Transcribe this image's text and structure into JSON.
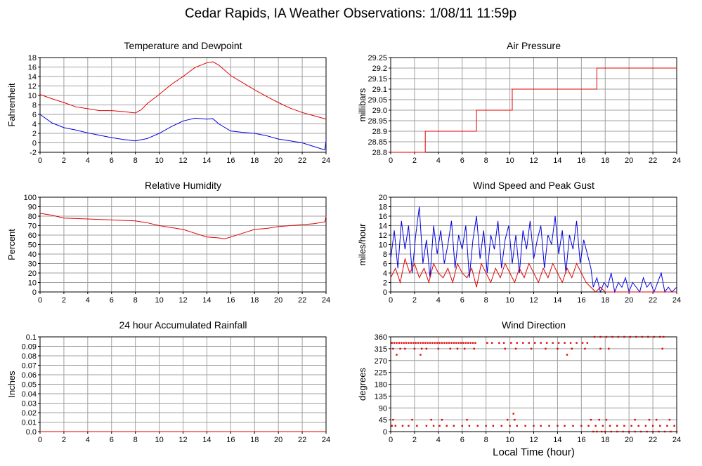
{
  "page": {
    "title": "Cedar Rapids, IA Weather Observations: 1/08/11 11:59p",
    "footer_xlabel": "Local Time (hour)"
  },
  "colors": {
    "red": "#e00000",
    "blue": "#0000e0",
    "grid": "#a0a0a0",
    "frame": "#000000"
  },
  "chart_data": [
    {
      "type": "line",
      "title": "Temperature and Dewpoint",
      "ylabel": "Fahrenheit",
      "xlim": [
        0,
        24
      ],
      "ylim": [
        -2,
        18
      ],
      "xticks": [
        "0",
        "2",
        "4",
        "6",
        "8",
        "10",
        "12",
        "14",
        "16",
        "18",
        "20",
        "22",
        "24"
      ],
      "yticks": [
        "-2",
        "0",
        "2",
        "4",
        "6",
        "8",
        "10",
        "12",
        "14",
        "16",
        "18"
      ],
      "grid": true,
      "series": [
        {
          "color": "red",
          "x": [
            0,
            1,
            2,
            3,
            3.5,
            4,
            5,
            6,
            7,
            8,
            8.5,
            9,
            10,
            11,
            12,
            13,
            14,
            14.5,
            15,
            16,
            17,
            18,
            19,
            20,
            21,
            22,
            23,
            24
          ],
          "y": [
            10.2,
            9.3,
            8.5,
            7.6,
            7.4,
            7.2,
            6.8,
            6.8,
            6.6,
            6.3,
            7.0,
            8.3,
            10.2,
            12.3,
            14.0,
            15.9,
            16.9,
            17.1,
            16.4,
            14.2,
            12.7,
            11.2,
            9.8,
            8.5,
            7.3,
            6.4,
            5.7,
            5.0
          ]
        },
        {
          "color": "blue",
          "x": [
            0,
            1,
            2,
            3,
            4,
            5,
            6,
            7,
            8,
            9,
            10,
            11,
            12,
            13,
            14,
            14.5,
            15,
            16,
            17,
            18,
            19,
            20,
            21,
            22,
            23,
            23.9,
            24
          ],
          "y": [
            6.0,
            4.2,
            3.2,
            2.7,
            2.1,
            1.6,
            1.1,
            0.7,
            0.4,
            0.9,
            2.0,
            3.4,
            4.6,
            5.2,
            5.0,
            5.1,
            4.0,
            2.5,
            2.2,
            2.0,
            1.5,
            0.8,
            0.4,
            0.0,
            -0.8,
            -1.5,
            0.5
          ]
        }
      ]
    },
    {
      "type": "line",
      "title": "Air Pressure",
      "ylabel": "millibars",
      "xlim": [
        0,
        24
      ],
      "ylim": [
        28.8,
        29.25
      ],
      "xticks": [
        "0",
        "2",
        "4",
        "6",
        "8",
        "10",
        "12",
        "14",
        "16",
        "18",
        "20",
        "22",
        "24"
      ],
      "yticks": [
        "28.8",
        "28.85",
        "28.9",
        "28.95",
        "29.0",
        "29.05",
        "29.1",
        "29.15",
        "29.2",
        "29.25"
      ],
      "grid": true,
      "series": [
        {
          "color": "red",
          "step": true,
          "x": [
            0,
            2.9,
            7.2,
            10.2,
            17.3,
            24
          ],
          "y": [
            28.8,
            28.9,
            29.0,
            29.1,
            29.2,
            29.2
          ]
        }
      ]
    },
    {
      "type": "line",
      "title": "Relative Humidity",
      "ylabel": "Percent",
      "xlim": [
        0,
        24
      ],
      "ylim": [
        0,
        100
      ],
      "xticks": [
        "0",
        "2",
        "4",
        "6",
        "8",
        "10",
        "12",
        "14",
        "16",
        "18",
        "20",
        "22",
        "24"
      ],
      "yticks": [
        "0",
        "10",
        "20",
        "30",
        "40",
        "50",
        "60",
        "70",
        "80",
        "90",
        "100"
      ],
      "grid": true,
      "series": [
        {
          "color": "red",
          "x": [
            0,
            1,
            2,
            4,
            6,
            8,
            9,
            10,
            11,
            12,
            13,
            14,
            15,
            15.5,
            16,
            17,
            18,
            19,
            20,
            21,
            22,
            23,
            23.9,
            24
          ],
          "y": [
            83,
            81,
            78,
            77,
            76,
            75,
            73,
            70,
            68,
            66,
            62,
            58,
            57,
            56,
            58,
            62,
            66,
            67,
            69,
            70,
            71,
            72,
            74,
            80
          ]
        }
      ]
    },
    {
      "type": "line",
      "title": "Wind Speed and Peak Gust",
      "ylabel": "miles/hour",
      "xlim": [
        0,
        24
      ],
      "ylim": [
        0,
        20
      ],
      "xticks": [
        "0",
        "2",
        "4",
        "6",
        "8",
        "10",
        "12",
        "14",
        "16",
        "18",
        "20",
        "22",
        "24"
      ],
      "yticks": [
        "0",
        "2",
        "4",
        "6",
        "8",
        "10",
        "12",
        "14",
        "16",
        "18",
        "20"
      ],
      "grid": true,
      "series": [
        {
          "color": "blue",
          "x": [
            0,
            0.3,
            0.6,
            0.9,
            1.2,
            1.5,
            1.8,
            2.1,
            2.4,
            2.7,
            3.0,
            3.3,
            3.6,
            3.9,
            4.2,
            4.5,
            4.8,
            5.1,
            5.4,
            5.7,
            6.0,
            6.3,
            6.6,
            6.9,
            7.2,
            7.5,
            7.8,
            8.1,
            8.4,
            8.7,
            9.0,
            9.3,
            9.6,
            9.9,
            10.2,
            10.5,
            10.8,
            11.1,
            11.4,
            11.7,
            12.0,
            12.3,
            12.6,
            12.9,
            13.2,
            13.5,
            13.8,
            14.1,
            14.4,
            14.7,
            15.0,
            15.3,
            15.6,
            15.9,
            16.2,
            16.5,
            16.8,
            17.0,
            17.3,
            17.6,
            17.9,
            18.2,
            18.5,
            18.8,
            19.1,
            19.4,
            19.7,
            20.0,
            20.3,
            20.6,
            20.9,
            21.2,
            21.5,
            21.8,
            22.1,
            22.4,
            22.7,
            23.0,
            23.3,
            23.6,
            24
          ],
          "y": [
            7,
            13,
            5,
            15,
            9,
            14,
            4,
            12,
            18,
            6,
            11,
            3,
            14,
            8,
            13,
            6,
            10,
            15,
            5,
            12,
            9,
            14,
            3,
            11,
            16,
            7,
            13,
            4,
            12,
            9,
            15,
            5,
            11,
            14,
            6,
            12,
            4,
            13,
            9,
            15,
            7,
            11,
            14,
            5,
            12,
            10,
            16,
            8,
            13,
            4,
            12,
            9,
            15,
            6,
            11,
            8,
            5,
            1,
            3,
            0,
            2,
            1,
            4,
            0,
            2,
            1,
            3,
            0,
            2,
            1,
            0,
            3,
            1,
            2,
            0,
            2,
            4,
            0,
            1,
            0,
            1
          ]
        },
        {
          "color": "red",
          "x": [
            0,
            0.4,
            0.8,
            1.2,
            1.6,
            2.0,
            2.4,
            2.8,
            3.2,
            3.6,
            4.0,
            4.4,
            4.8,
            5.2,
            5.6,
            6.0,
            6.4,
            6.8,
            7.2,
            7.6,
            8.0,
            8.4,
            8.8,
            9.2,
            9.6,
            10.0,
            10.4,
            10.8,
            11.2,
            11.6,
            12.0,
            12.4,
            12.8,
            13.2,
            13.6,
            14.0,
            14.4,
            14.8,
            15.2,
            15.6,
            16.0,
            16.4,
            16.8,
            17.2,
            17.6,
            18.0,
            19,
            20,
            21,
            22,
            23,
            24
          ],
          "y": [
            3,
            5,
            2,
            7,
            4,
            6,
            3,
            5,
            2,
            6,
            4,
            3,
            5,
            2,
            6,
            4,
            3,
            5,
            1,
            6,
            4,
            2,
            5,
            3,
            6,
            4,
            2,
            5,
            3,
            6,
            4,
            2,
            5,
            3,
            6,
            4,
            2,
            5,
            3,
            6,
            4,
            2,
            1,
            0,
            1,
            0,
            0,
            0,
            0,
            0,
            0,
            0
          ]
        }
      ]
    },
    {
      "type": "line",
      "title": "24 hour Accumulated Rainfall",
      "ylabel": "Inches",
      "xlim": [
        0,
        24
      ],
      "ylim": [
        0,
        0.1
      ],
      "xticks": [
        "0",
        "2",
        "4",
        "6",
        "8",
        "10",
        "12",
        "14",
        "16",
        "18",
        "20",
        "22",
        "24"
      ],
      "yticks": [
        "0.0",
        "0.01",
        "0.02",
        "0.03",
        "0.04",
        "0.05",
        "0.06",
        "0.07",
        "0.08",
        "0.09",
        "0.1"
      ],
      "grid": true,
      "series": [
        {
          "color": "red",
          "x": [
            0,
            24
          ],
          "y": [
            0,
            0
          ]
        }
      ]
    },
    {
      "type": "scatter",
      "title": "Wind Direction",
      "ylabel": "degrees",
      "xlabel": "Local Time (hour)",
      "xlim": [
        0,
        24
      ],
      "ylim": [
        0,
        360
      ],
      "xticks": [
        "0",
        "2",
        "4",
        "6",
        "8",
        "10",
        "12",
        "14",
        "16",
        "18",
        "20",
        "22",
        "24"
      ],
      "yticks": [
        "0",
        "45",
        "90",
        "135",
        "180",
        "225",
        "270",
        "315",
        "360"
      ],
      "grid": true,
      "series": [
        {
          "color": "red",
          "x": [
            0.1,
            0.3,
            0.5,
            0.7,
            0.9,
            1.1,
            1.3,
            1.5,
            1.7,
            1.9,
            2.1,
            2.3,
            2.5,
            2.7,
            2.9,
            3.1,
            3.3,
            3.5,
            3.7,
            3.9,
            4.1,
            4.3,
            4.5,
            4.7,
            4.9,
            5.1,
            5.3,
            5.5,
            5.7,
            5.9,
            6.1,
            6.3,
            6.5,
            6.7,
            6.9,
            7.1,
            8.1,
            8.5,
            9.1,
            9.5,
            10.1,
            10.6,
            11.1,
            11.6,
            12.1,
            12.6,
            13.1,
            13.6,
            14.1,
            14.6,
            15.1,
            15.6,
            16.1,
            16.5,
            17.1,
            17.6,
            18.1,
            18.6,
            19.1,
            19.6,
            20.1,
            20.6,
            21.1,
            21.6,
            22.1,
            22.6,
            22.9,
            0.2,
            0.8,
            1.2,
            2.0,
            2.6,
            3.0,
            4.0,
            5.0,
            5.6,
            6.2,
            7.0,
            9.6,
            10.5,
            11.8,
            13.0,
            14.0,
            15.2,
            16.3,
            17.6,
            18.3,
            22.8,
            0.5,
            2.5,
            14.8,
            10.3,
            0.1,
            0.4,
            1.0,
            1.5,
            2.2,
            3.0,
            3.6,
            4.1,
            4.7,
            5.3,
            6.0,
            6.6,
            7.3,
            8.0,
            8.6,
            9.3,
            10.0,
            10.6,
            11.3,
            12.0,
            12.6,
            13.3,
            14.0,
            14.6,
            15.3,
            16.0,
            16.6,
            17.2,
            17.8,
            18.4,
            19.0,
            19.6,
            20.2,
            20.8,
            21.4,
            22.0,
            22.6,
            23.2,
            23.8,
            0.2,
            1.8,
            3.4,
            4.3,
            6.4,
            9.8,
            10.4,
            16.8,
            17.5,
            18.1,
            20.5,
            21.7,
            22.3,
            23.4,
            17.0,
            17.3,
            17.7,
            18.0,
            18.5,
            19.0,
            19.5,
            20.0,
            20.5,
            21.0,
            21.5,
            22.0,
            22.5,
            23.0,
            23.5,
            24.0
          ],
          "y": [
            337,
            337,
            337,
            337,
            337,
            337,
            337,
            337,
            337,
            337,
            337,
            337,
            337,
            337,
            337,
            337,
            337,
            337,
            337,
            337,
            337,
            337,
            337,
            337,
            337,
            337,
            337,
            337,
            337,
            337,
            337,
            337,
            337,
            337,
            337,
            337,
            337,
            337,
            337,
            337,
            337,
            337,
            337,
            337,
            337,
            337,
            337,
            337,
            337,
            337,
            337,
            337,
            337,
            337,
            360,
            360,
            360,
            360,
            360,
            360,
            360,
            360,
            360,
            360,
            360,
            360,
            360,
            315,
            315,
            315,
            315,
            315,
            315,
            315,
            315,
            315,
            315,
            315,
            315,
            315,
            315,
            315,
            315,
            315,
            315,
            315,
            315,
            315,
            292,
            292,
            292,
            68,
            22,
            22,
            22,
            22,
            22,
            22,
            22,
            22,
            22,
            22,
            22,
            22,
            22,
            22,
            22,
            22,
            22,
            22,
            22,
            22,
            22,
            22,
            22,
            22,
            22,
            22,
            22,
            22,
            22,
            22,
            22,
            22,
            22,
            22,
            22,
            22,
            22,
            22,
            22,
            45,
            45,
            45,
            45,
            45,
            45,
            45,
            45,
            45,
            45,
            45,
            45,
            45,
            45,
            0,
            0,
            0,
            0,
            0,
            0,
            0,
            0,
            0,
            0,
            0,
            0,
            0,
            0,
            0,
            0
          ]
        }
      ]
    }
  ]
}
